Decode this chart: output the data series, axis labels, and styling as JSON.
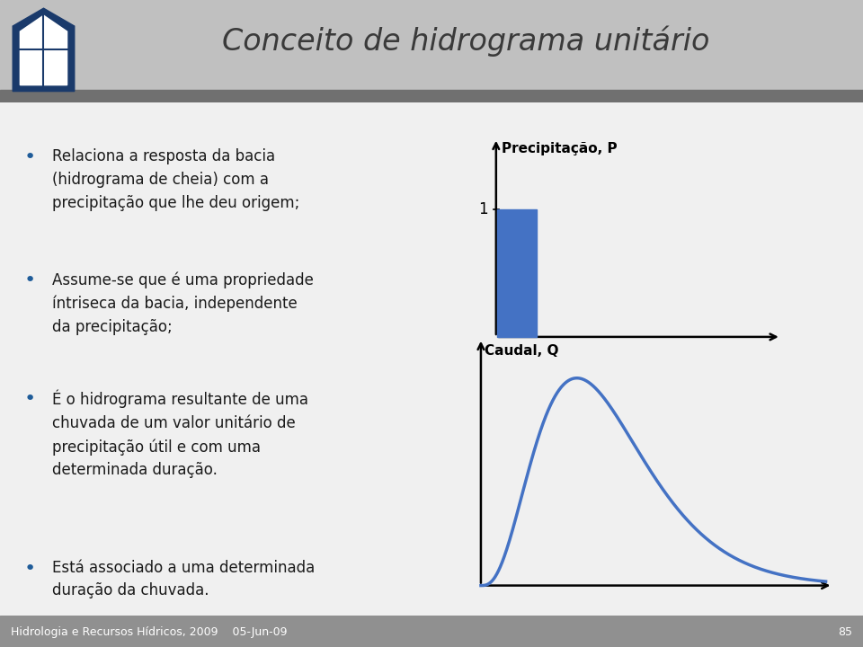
{
  "title": "Conceito de hidrograma unitário",
  "title_color": "#3a3a3a",
  "header_bg_top": "#c8c8c8",
  "header_bg": "#b8b8b8",
  "header_dark_strip": "#787878",
  "footer_bg": "#909090",
  "footer_text": "Hidrologia e Recursos Hídricos, 2009    05-Jun-09",
  "footer_number": "85",
  "bullet_color": "#1F5C99",
  "bullet_text_color": "#1A1A1A",
  "bullets": [
    "Relaciona a resposta da bacia\n(hidrograma de cheia) com a\nprecipitação que lhe deu origem;",
    "Assume-se que é uma propriedade\níntriseca da bacia, independente\nda precipitação;",
    "É o hidrograma resultante de uma\nchuvada de um valor unitário de\nprecipitação útil e com uma\ndeterminada duração.",
    "Está associado a uma determinada\nduração da chuvada."
  ],
  "diagram_blue": "#4472C4",
  "prec_label": "Precipitação, P",
  "flow_label": "Caudal, Q",
  "bar_label": "1",
  "bg_color": "#f0f0f0",
  "content_bg": "#ffffff"
}
